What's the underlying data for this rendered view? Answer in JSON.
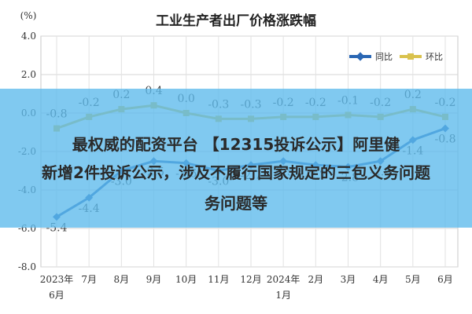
{
  "chart_data": {
    "type": "line",
    "title": "工业生产者出厂价格涨跌幅",
    "unit_label": "(%)",
    "ylim": [
      -8.0,
      4.0
    ],
    "yticks": [
      "4.0",
      "2.0",
      "0.0",
      "-2.0",
      "-4.0",
      "-6.0",
      "-8.0"
    ],
    "ytick_values": [
      4.0,
      2.0,
      0.0,
      -2.0,
      -4.0,
      -6.0,
      -8.0
    ],
    "categories": [
      "2023年 6月",
      "7月",
      "8月",
      "9月",
      "10月",
      "11月",
      "12月",
      "2024年 1月",
      "2月",
      "3月",
      "4月",
      "5月",
      "6月"
    ],
    "category_lines": [
      [
        "2023年",
        "6月"
      ],
      [
        "7月"
      ],
      [
        "8月"
      ],
      [
        "9月"
      ],
      [
        "10月"
      ],
      [
        "11月"
      ],
      [
        "12月"
      ],
      [
        "2024年",
        "1月"
      ],
      [
        "2月"
      ],
      [
        "3月"
      ],
      [
        "4月"
      ],
      [
        "5月"
      ],
      [
        "6月"
      ]
    ],
    "grid": true,
    "legend_position": "top-right",
    "series": [
      {
        "name": "同比",
        "color": "#2a67b4",
        "values": [
          -5.4,
          -4.4,
          -3.0,
          -2.5,
          -2.6,
          -3.0,
          -2.7,
          -2.5,
          -2.7,
          -2.8,
          -2.5,
          -1.4,
          -0.8
        ],
        "labels": [
          "-5.4",
          "-4.4",
          "-3.0",
          "-2.5",
          "-2.6",
          "-3.0",
          "-2.7",
          "-2.5",
          "-2.7",
          "-2.8",
          "-2.5",
          "-1.4",
          "-0.8"
        ]
      },
      {
        "name": "环比",
        "color": "#d9c24e",
        "values": [
          -0.8,
          -0.2,
          0.2,
          0.4,
          0.0,
          -0.3,
          -0.3,
          -0.2,
          -0.2,
          -0.1,
          -0.2,
          0.2,
          -0.2
        ],
        "labels": [
          "-0.8",
          "-0.2",
          "0.2",
          "0.4",
          "0.0",
          "-0.3",
          "-0.3",
          "-0.2",
          "-0.2",
          "-0.1",
          "-0.2",
          "0.2",
          "-0.2"
        ]
      }
    ]
  },
  "overlay": {
    "lines": [
      "最权威的配资平台 【12315投诉公示】阿里健",
      "新增2件投诉公示，涉及不履行国家规定的三包义务问题",
      "务问题等"
    ]
  }
}
